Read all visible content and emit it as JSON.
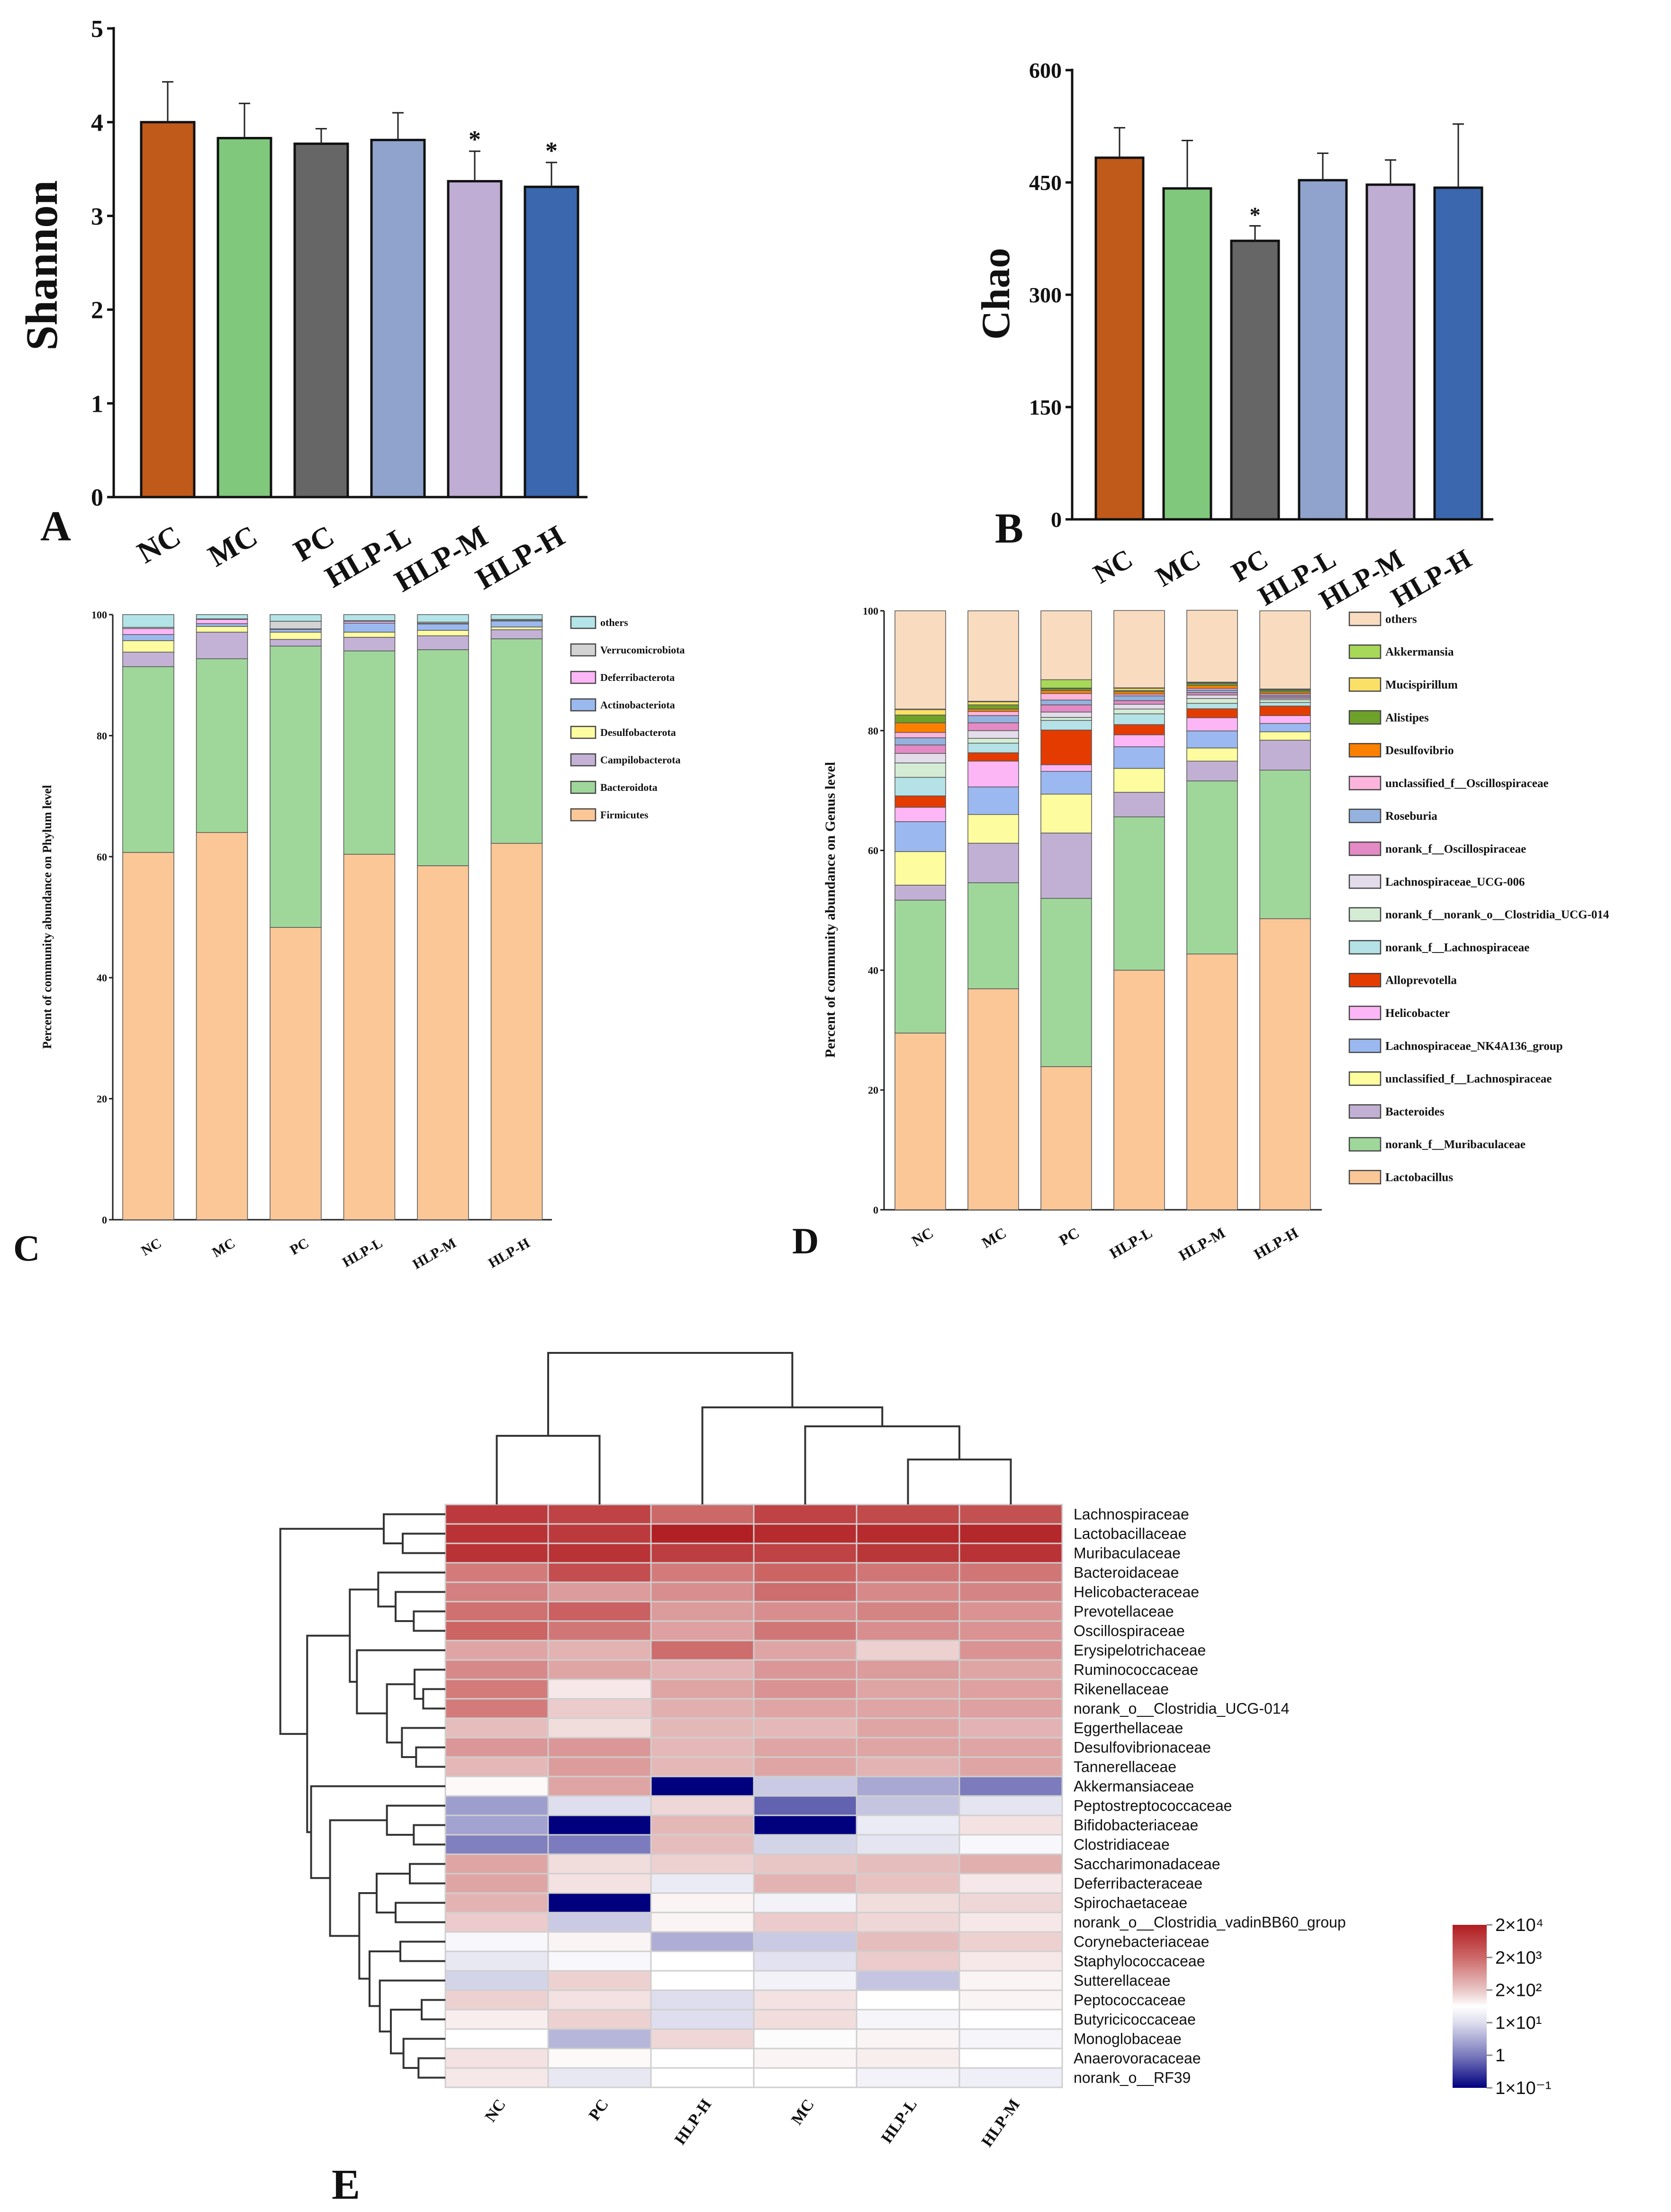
{
  "chart_data": [
    {
      "id": "A",
      "type": "bar",
      "panel_label": "A",
      "ylabel": "Shannon",
      "xlabel": "",
      "categories": [
        "NC",
        "MC",
        "PC",
        "HLP-L",
        "HLP-M",
        "HLP-H"
      ],
      "values": [
        4.0,
        3.83,
        3.77,
        3.81,
        3.37,
        3.31
      ],
      "error": [
        0.43,
        0.37,
        0.16,
        0.29,
        0.32,
        0.26
      ],
      "significance": [
        "",
        "",
        "",
        "",
        "*",
        "*"
      ],
      "ylim": [
        0,
        5
      ],
      "yticks": [
        0,
        1,
        2,
        3,
        4,
        5
      ],
      "colors": [
        "#c05a1a",
        "#7fc87c",
        "#666666",
        "#8fa3cc",
        "#bfadd3",
        "#3a67ae"
      ]
    },
    {
      "id": "B",
      "type": "bar",
      "panel_label": "B",
      "ylabel": "Chao",
      "xlabel": "",
      "categories": [
        "NC",
        "MC",
        "PC",
        "HLP-L",
        "HLP-M",
        "HLP-H"
      ],
      "values": [
        483,
        442,
        372,
        453,
        447,
        443
      ],
      "error": [
        40,
        64,
        20,
        36,
        33,
        85
      ],
      "significance": [
        "",
        "",
        "*",
        "",
        "",
        ""
      ],
      "ylim": [
        0,
        600
      ],
      "yticks": [
        0,
        150,
        300,
        450,
        600
      ],
      "colors": [
        "#c05a1a",
        "#7fc87c",
        "#666666",
        "#8fa3cc",
        "#bfadd3",
        "#3a67ae"
      ]
    },
    {
      "id": "C",
      "type": "stacked_bar",
      "panel_label": "C",
      "ylabel": "Percent of community abundance on Phylum level",
      "categories": [
        "NC",
        "MC",
        "PC",
        "HLP-L",
        "HLP-M",
        "HLP-H"
      ],
      "ylim": [
        0,
        100
      ],
      "yticks": [
        0,
        20,
        40,
        60,
        80,
        100
      ],
      "legend_position": "right",
      "series": [
        {
          "name": "others",
          "color": "#b3e4e8",
          "values": [
            2.1,
            0.7,
            1.1,
            1.0,
            1.25,
            0.8
          ]
        },
        {
          "name": "Verrucomicrobiota",
          "color": "#d3d3d3",
          "values": [
            0.2,
            0.1,
            1.25,
            0.1,
            0.2,
            0.15
          ]
        },
        {
          "name": "Deferribacterota",
          "color": "#fdb6f5",
          "values": [
            1.0,
            0.7,
            0.1,
            0.3,
            0.1,
            0.1
          ]
        },
        {
          "name": "Actinobacteriota",
          "color": "#9bb9ef",
          "values": [
            1.0,
            0.45,
            0.45,
            1.5,
            1.05,
            1.0
          ]
        },
        {
          "name": "Desulfobacterota",
          "color": "#fefca0",
          "values": [
            1.9,
            0.95,
            1.2,
            0.85,
            0.9,
            0.45
          ]
        },
        {
          "name": "Campilobacterota",
          "color": "#c3b2d6",
          "values": [
            2.4,
            4.4,
            1.1,
            2.25,
            2.3,
            1.5
          ]
        },
        {
          "name": "Bacteroidota",
          "color": "#9fd79b",
          "values": [
            30.7,
            28.7,
            46.5,
            33.6,
            35.7,
            33.8
          ]
        },
        {
          "name": "Firmicutes",
          "color": "#fbc797",
          "values": [
            60.7,
            64.0,
            48.3,
            60.4,
            58.5,
            62.2
          ]
        }
      ]
    },
    {
      "id": "D",
      "type": "stacked_bar",
      "panel_label": "D",
      "ylabel": "Percent of community abundance on Genus level",
      "categories": [
        "NC",
        "MC",
        "PC",
        "HLP-L",
        "HLP-M",
        "HLP-H"
      ],
      "ylim": [
        0,
        100
      ],
      "yticks": [
        0,
        20,
        40,
        60,
        80,
        100
      ],
      "legend_position": "right",
      "series": [
        {
          "name": "others",
          "color": "#f9dcc0",
          "values": [
            16.4,
            15.1,
            11.5,
            12.9,
            12.0,
            13.05
          ]
        },
        {
          "name": "Akkermansia",
          "color": "#a8d858",
          "values": [
            0.1,
            0.1,
            1.4,
            0.1,
            0.1,
            0.1
          ]
        },
        {
          "name": "Mucispirillum",
          "color": "#fbe068",
          "values": [
            0.9,
            0.5,
            0.1,
            0.35,
            0.1,
            0.1
          ]
        },
        {
          "name": "Alistipes",
          "color": "#6ea12a",
          "values": [
            1.3,
            0.7,
            0.3,
            0.2,
            0.35,
            0.3
          ]
        },
        {
          "name": "Desulfovibrio",
          "color": "#fb8000",
          "values": [
            1.6,
            0.4,
            0.5,
            0.4,
            0.5,
            0.3
          ]
        },
        {
          "name": "unclassified_f__Oscillospiraceae",
          "color": "#fdb4dc",
          "values": [
            0.9,
            0.7,
            1.1,
            0.3,
            0.3,
            0.25
          ]
        },
        {
          "name": "Roseburia",
          "color": "#95b2df",
          "values": [
            1.2,
            1.2,
            0.8,
            0.8,
            0.4,
            0.25
          ]
        },
        {
          "name": "norank_f__Oscillospiraceae",
          "color": "#e48ac4",
          "values": [
            1.4,
            1.3,
            1.2,
            0.6,
            0.4,
            0.25
          ]
        },
        {
          "name": "Lachnospiraceae_UCG-006",
          "color": "#e3dcea",
          "values": [
            1.6,
            1.3,
            0.9,
            0.8,
            0.6,
            0.25
          ]
        },
        {
          "name": "norank_f__norank_o__Clostridia_UCG-014",
          "color": "#d5ecd4",
          "values": [
            2.4,
            0.8,
            0.5,
            0.8,
            0.8,
            0.45
          ]
        },
        {
          "name": "norank_f__Lachnospiraceae",
          "color": "#b4e2e6",
          "values": [
            3.1,
            1.6,
            1.6,
            1.8,
            0.9,
            0.6
          ]
        },
        {
          "name": "Alloprevotella",
          "color": "#e43c00",
          "values": [
            1.9,
            1.4,
            5.8,
            1.7,
            1.5,
            1.6
          ]
        },
        {
          "name": "Helicobacter",
          "color": "#fcb6f6",
          "values": [
            2.4,
            4.3,
            1.1,
            2.0,
            2.2,
            1.3
          ]
        },
        {
          "name": "Lachnospiraceae_NK4A136_group",
          "color": "#9bb9f0",
          "values": [
            5.0,
            4.6,
            3.8,
            3.6,
            2.85,
            1.4
          ]
        },
        {
          "name": "unclassified_f__Lachnospiraceae",
          "color": "#fdfc9e",
          "values": [
            5.6,
            4.8,
            6.5,
            4.0,
            2.2,
            1.4
          ]
        },
        {
          "name": "Bacteroides",
          "color": "#c2b0d4",
          "values": [
            2.5,
            6.6,
            10.9,
            4.1,
            3.3,
            5.0
          ]
        },
        {
          "name": "norank_f__Muribaculaceae",
          "color": "#9fd79b",
          "values": [
            22.2,
            17.7,
            28.1,
            25.6,
            28.9,
            24.8
          ]
        },
        {
          "name": "Lactobacillus",
          "color": "#fbc797",
          "values": [
            29.5,
            36.9,
            23.9,
            40.0,
            42.7,
            48.6
          ]
        }
      ]
    },
    {
      "id": "E",
      "type": "heatmap",
      "panel_label": "E",
      "value_scale": "log10 abundance",
      "columns": [
        "NC",
        "PC",
        "HLP-H",
        "MC",
        "HLP-L",
        "HLP-M"
      ],
      "rows": [
        "Lachnospiraceae",
        "Lactobacillaceae",
        "Muribaculaceae",
        "Bacteroidaceae",
        "Helicobacteraceae",
        "Prevotellaceae",
        "Oscillospiraceae",
        "Erysipelotrichaceae",
        "Ruminococcaceae",
        "Rikenellaceae",
        "norank_o__Clostridia_UCG-014",
        "Eggerthellaceae",
        "Desulfovibrionaceae",
        "Tannerellaceae",
        "Akkermansiaceae",
        "Peptostreptococcaceae",
        "Bifidobacteriaceae",
        "Clostridiaceae",
        "Saccharimonadaceae",
        "Deferribacteraceae",
        "Spirochaetaceae",
        "norank_o__Clostridia_vadinBB60_group",
        "Corynebacteriaceae",
        "Staphylococcaceae",
        "Sutterellaceae",
        "Peptococcaceae",
        "Butyricicoccaceae",
        "Monoglobaceae",
        "Anaerovoracaceae",
        "norank_o__RF39"
      ],
      "values": [
        [
          3.9,
          3.8,
          3.3,
          3.8,
          3.7,
          3.6
        ],
        [
          4.0,
          3.9,
          4.25,
          4.1,
          4.1,
          4.15
        ],
        [
          4.0,
          4.0,
          3.85,
          3.8,
          3.95,
          4.0
        ],
        [
          3.1,
          3.65,
          3.1,
          3.35,
          3.15,
          3.15
        ],
        [
          3.05,
          2.75,
          2.9,
          3.25,
          2.95,
          3.0
        ],
        [
          3.2,
          3.4,
          2.75,
          2.9,
          3.0,
          2.85
        ],
        [
          3.35,
          3.15,
          2.7,
          3.15,
          2.9,
          2.85
        ],
        [
          2.65,
          2.5,
          3.25,
          2.65,
          2.17,
          2.85
        ],
        [
          2.95,
          2.65,
          2.5,
          2.8,
          2.75,
          2.65
        ],
        [
          3.1,
          1.91,
          2.65,
          2.85,
          2.65,
          2.7
        ],
        [
          3.1,
          2.24,
          2.55,
          2.65,
          2.65,
          2.7
        ],
        [
          2.4,
          2.04,
          2.45,
          2.45,
          2.65,
          2.5
        ],
        [
          2.8,
          2.8,
          2.45,
          2.65,
          2.65,
          2.65
        ],
        [
          2.45,
          2.75,
          2.45,
          2.65,
          2.5,
          2.65
        ],
        [
          1.72,
          2.65,
          -1.0,
          0.8,
          0.45,
          0.0
        ],
        [
          0.35,
          1.0,
          2.11,
          -0.2,
          0.75,
          1.13
        ],
        [
          0.4,
          -1.0,
          2.45,
          -1.0,
          1.26,
          1.98
        ],
        [
          0.05,
          0.0,
          2.4,
          0.9,
          1.13,
          1.52
        ],
        [
          2.65,
          2.04,
          2.17,
          2.3,
          2.4,
          2.55
        ],
        [
          2.65,
          1.98,
          1.26,
          2.5,
          2.35,
          1.91
        ],
        [
          2.5,
          -1.0,
          1.78,
          1.39,
          2.04,
          2.11
        ],
        [
          2.24,
          0.8,
          1.78,
          2.24,
          2.11,
          1.91
        ],
        [
          1.52,
          1.78,
          0.5,
          0.8,
          2.4,
          2.17
        ],
        [
          1.2,
          1.52,
          1.65,
          1.07,
          2.24,
          1.91
        ],
        [
          0.9,
          2.17,
          1.65,
          1.39,
          0.75,
          1.78
        ],
        [
          2.17,
          1.98,
          1.0,
          1.98,
          1.65,
          1.78
        ],
        [
          1.85,
          2.17,
          1.0,
          2.04,
          1.46,
          1.65
        ],
        [
          1.65,
          0.6,
          2.11,
          1.59,
          1.78,
          1.46
        ],
        [
          1.98,
          1.72,
          1.65,
          1.78,
          1.85,
          1.65
        ],
        [
          1.91,
          1.2,
          1.65,
          1.65,
          1.39,
          1.33
        ]
      ],
      "colorbar": {
        "tick_labels": [
          "2×10⁴",
          "2×10³",
          "2×10²",
          "1×10¹",
          "1",
          "1×10⁻¹"
        ],
        "colors": [
          "#b01c20",
          "#cd6868",
          "#e9c6c6",
          "#ffffff",
          "#dedeee",
          "#7b7bbd",
          "#00007f"
        ]
      }
    }
  ]
}
